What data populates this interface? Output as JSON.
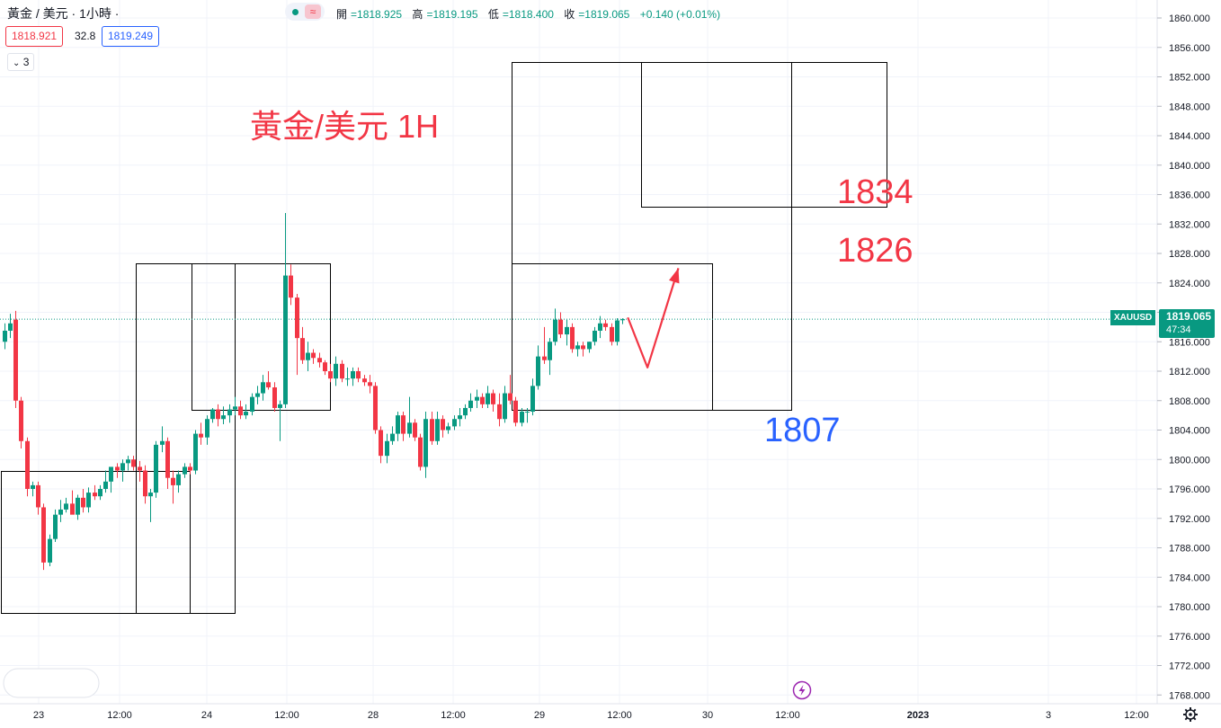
{
  "header": {
    "symbol_title": "黃金 / 美元 · 1小時 ·",
    "ohlc": [
      {
        "k": "開",
        "v": "=1818.925"
      },
      {
        "k": "高",
        "v": "=1819.195"
      },
      {
        "k": "低",
        "v": "=1818.400"
      },
      {
        "k": "收",
        "v": "=1819.065"
      },
      {
        "k": "",
        "v": "+0.140 (+0.01%)"
      }
    ],
    "sell_price": "1818.921",
    "spread": "32.8",
    "buy_price": "1819.249",
    "indicator_count": "3"
  },
  "price_tag": {
    "symbol": "XAUUSD",
    "price": "1819.065",
    "countdown": "47:34"
  },
  "chart_data": {
    "type": "candlestick",
    "title": "黃金/美元 1H",
    "ylim": [
      1766,
      1862
    ],
    "y_ticks": [
      "1860.000",
      "1856.000",
      "1852.000",
      "1848.000",
      "1844.000",
      "1840.000",
      "1836.000",
      "1832.000",
      "1828.000",
      "1824.000",
      "1820.000",
      "1816.000",
      "1812.000",
      "1808.000",
      "1804.000",
      "1800.000",
      "1796.000",
      "1792.000",
      "1788.000",
      "1784.000",
      "1780.000",
      "1776.000",
      "1772.000",
      "1768.000"
    ],
    "x_ticks": [
      "23",
      "12:00",
      "24",
      "12:00",
      "28",
      "12:00",
      "29",
      "12:00",
      "30",
      "12:00",
      "2023",
      "3",
      "12:00"
    ],
    "last_price": 1819.065,
    "annotations": [
      {
        "text": "1834",
        "color": "#f23645"
      },
      {
        "text": "1826",
        "color": "#f23645"
      },
      {
        "text": "1807",
        "color": "#2962ff"
      }
    ],
    "zones": [
      {
        "x0": 0,
        "x1": 33,
        "y0": 1779.2,
        "y1": 1798.5
      },
      {
        "x0": 24,
        "x1": 41,
        "y0": 1779.2,
        "y1": 1826.7
      },
      {
        "x0": 34,
        "x1": 58,
        "y0": 1806.8,
        "y1": 1826.7
      },
      {
        "x0": 91,
        "x1": 126,
        "y0": 1806.8,
        "y1": 1826.7
      },
      {
        "x0": 91,
        "x1": 140,
        "y0": 1806.8,
        "y1": 1854.0
      },
      {
        "x0": 114,
        "x1": 157,
        "y0": 1834.4,
        "y1": 1854.0
      }
    ],
    "arrow": [
      {
        "x": 111,
        "y": 1819.3
      },
      {
        "x": 114.5,
        "y": 1812.5
      },
      {
        "x": 120,
        "y": 1826.0
      }
    ],
    "candles": [
      {
        "o": 1816.0,
        "h": 1818.5,
        "l": 1815.0,
        "c": 1817.5
      },
      {
        "o": 1817.5,
        "h": 1819.8,
        "l": 1816.5,
        "c": 1818.5
      },
      {
        "o": 1819.0,
        "h": 1820.2,
        "l": 1807.0,
        "c": 1808.0
      },
      {
        "o": 1808.0,
        "h": 1808.5,
        "l": 1801.5,
        "c": 1802.5
      },
      {
        "o": 1802.5,
        "h": 1803.0,
        "l": 1795.0,
        "c": 1796.0
      },
      {
        "o": 1796.0,
        "h": 1797.0,
        "l": 1795.0,
        "c": 1796.5
      },
      {
        "o": 1796.5,
        "h": 1797.0,
        "l": 1792.5,
        "c": 1793.5
      },
      {
        "o": 1793.5,
        "h": 1794.0,
        "l": 1785.0,
        "c": 1786.0
      },
      {
        "o": 1786.0,
        "h": 1789.8,
        "l": 1785.5,
        "c": 1789.2
      },
      {
        "o": 1789.2,
        "h": 1793.2,
        "l": 1788.8,
        "c": 1792.5
      },
      {
        "o": 1792.5,
        "h": 1794.5,
        "l": 1791.5,
        "c": 1793.2
      },
      {
        "o": 1793.2,
        "h": 1794.8,
        "l": 1792.8,
        "c": 1794.0
      },
      {
        "o": 1794.0,
        "h": 1795.8,
        "l": 1793.2,
        "c": 1792.5
      },
      {
        "o": 1792.5,
        "h": 1795.2,
        "l": 1791.8,
        "c": 1794.8
      },
      {
        "o": 1794.8,
        "h": 1796.0,
        "l": 1792.8,
        "c": 1793.5
      },
      {
        "o": 1793.5,
        "h": 1796.2,
        "l": 1792.8,
        "c": 1795.5
      },
      {
        "o": 1795.5,
        "h": 1796.5,
        "l": 1794.5,
        "c": 1795.0
      },
      {
        "o": 1795.0,
        "h": 1796.5,
        "l": 1794.5,
        "c": 1796.0
      },
      {
        "o": 1796.0,
        "h": 1798.5,
        "l": 1795.5,
        "c": 1797.0
      },
      {
        "o": 1797.0,
        "h": 1799.0,
        "l": 1795.5,
        "c": 1799.0
      },
      {
        "o": 1799.0,
        "h": 1799.5,
        "l": 1797.5,
        "c": 1798.5
      },
      {
        "o": 1798.5,
        "h": 1800.0,
        "l": 1797.0,
        "c": 1799.5
      },
      {
        "o": 1799.5,
        "h": 1800.5,
        "l": 1798.5,
        "c": 1800.0
      },
      {
        "o": 1800.0,
        "h": 1800.5,
        "l": 1798.5,
        "c": 1799.0
      },
      {
        "o": 1799.0,
        "h": 1799.8,
        "l": 1797.0,
        "c": 1798.5
      },
      {
        "o": 1798.5,
        "h": 1799.2,
        "l": 1794.0,
        "c": 1795.0
      },
      {
        "o": 1795.0,
        "h": 1796.0,
        "l": 1791.5,
        "c": 1795.5
      },
      {
        "o": 1795.5,
        "h": 1802.5,
        "l": 1794.8,
        "c": 1802.0
      },
      {
        "o": 1802.0,
        "h": 1804.5,
        "l": 1801.0,
        "c": 1802.5
      },
      {
        "o": 1802.5,
        "h": 1803.0,
        "l": 1796.0,
        "c": 1797.5
      },
      {
        "o": 1797.5,
        "h": 1798.5,
        "l": 1794.0,
        "c": 1796.5
      },
      {
        "o": 1796.5,
        "h": 1798.5,
        "l": 1795.5,
        "c": 1798.0
      },
      {
        "o": 1798.0,
        "h": 1799.5,
        "l": 1797.5,
        "c": 1799.0
      },
      {
        "o": 1799.0,
        "h": 1799.5,
        "l": 1798.0,
        "c": 1798.5
      },
      {
        "o": 1798.5,
        "h": 1804.0,
        "l": 1798.0,
        "c": 1803.5
      },
      {
        "o": 1803.5,
        "h": 1805.0,
        "l": 1802.0,
        "c": 1803.0
      },
      {
        "o": 1803.0,
        "h": 1806.0,
        "l": 1802.0,
        "c": 1805.5
      },
      {
        "o": 1805.5,
        "h": 1807.0,
        "l": 1805.0,
        "c": 1806.8
      },
      {
        "o": 1806.8,
        "h": 1807.5,
        "l": 1804.5,
        "c": 1805.5
      },
      {
        "o": 1805.5,
        "h": 1807.2,
        "l": 1804.8,
        "c": 1806.0
      },
      {
        "o": 1806.0,
        "h": 1807.5,
        "l": 1805.0,
        "c": 1806.8
      },
      {
        "o": 1806.8,
        "h": 1808.5,
        "l": 1806.0,
        "c": 1807.2
      },
      {
        "o": 1807.2,
        "h": 1808.0,
        "l": 1805.5,
        "c": 1806.0
      },
      {
        "o": 1806.0,
        "h": 1807.5,
        "l": 1805.5,
        "c": 1806.5
      },
      {
        "o": 1806.5,
        "h": 1809.0,
        "l": 1806.0,
        "c": 1808.5
      },
      {
        "o": 1808.5,
        "h": 1810.0,
        "l": 1807.5,
        "c": 1809.0
      },
      {
        "o": 1809.0,
        "h": 1811.5,
        "l": 1808.0,
        "c": 1810.5
      },
      {
        "o": 1810.5,
        "h": 1812.0,
        "l": 1809.5,
        "c": 1809.8
      },
      {
        "o": 1809.8,
        "h": 1810.5,
        "l": 1806.5,
        "c": 1807.0
      },
      {
        "o": 1807.0,
        "h": 1808.0,
        "l": 1802.5,
        "c": 1807.5
      },
      {
        "o": 1807.5,
        "h": 1833.5,
        "l": 1807.0,
        "c": 1825.0
      },
      {
        "o": 1825.0,
        "h": 1826.5,
        "l": 1821.0,
        "c": 1822.0
      },
      {
        "o": 1822.0,
        "h": 1822.5,
        "l": 1811.5,
        "c": 1816.5
      },
      {
        "o": 1816.5,
        "h": 1818.0,
        "l": 1813.0,
        "c": 1813.5
      },
      {
        "o": 1813.5,
        "h": 1816.0,
        "l": 1812.0,
        "c": 1814.5
      },
      {
        "o": 1814.5,
        "h": 1815.0,
        "l": 1813.0,
        "c": 1813.8
      },
      {
        "o": 1813.8,
        "h": 1814.5,
        "l": 1812.5,
        "c": 1813.2
      },
      {
        "o": 1813.2,
        "h": 1813.5,
        "l": 1811.5,
        "c": 1812.0
      },
      {
        "o": 1812.0,
        "h": 1813.0,
        "l": 1810.5,
        "c": 1811.0
      },
      {
        "o": 1811.0,
        "h": 1814.0,
        "l": 1810.0,
        "c": 1813.0
      },
      {
        "o": 1813.0,
        "h": 1813.5,
        "l": 1810.5,
        "c": 1811.0
      },
      {
        "o": 1811.0,
        "h": 1812.5,
        "l": 1810.0,
        "c": 1811.0
      },
      {
        "o": 1811.0,
        "h": 1812.5,
        "l": 1810.0,
        "c": 1812.0
      },
      {
        "o": 1812.0,
        "h": 1812.5,
        "l": 1810.5,
        "c": 1811.0
      },
      {
        "o": 1811.0,
        "h": 1811.5,
        "l": 1810.0,
        "c": 1810.5
      },
      {
        "o": 1810.5,
        "h": 1811.5,
        "l": 1809.0,
        "c": 1810.0
      },
      {
        "o": 1810.0,
        "h": 1810.5,
        "l": 1803.5,
        "c": 1804.0
      },
      {
        "o": 1804.0,
        "h": 1804.5,
        "l": 1799.5,
        "c": 1800.5
      },
      {
        "o": 1800.5,
        "h": 1803.5,
        "l": 1799.5,
        "c": 1802.5
      },
      {
        "o": 1802.5,
        "h": 1804.5,
        "l": 1802.0,
        "c": 1803.5
      },
      {
        "o": 1803.5,
        "h": 1806.5,
        "l": 1802.5,
        "c": 1806.0
      },
      {
        "o": 1806.0,
        "h": 1806.5,
        "l": 1802.5,
        "c": 1803.5
      },
      {
        "o": 1803.5,
        "h": 1808.5,
        "l": 1803.0,
        "c": 1805.0
      },
      {
        "o": 1805.0,
        "h": 1805.5,
        "l": 1802.5,
        "c": 1803.0
      },
      {
        "o": 1803.0,
        "h": 1803.5,
        "l": 1798.5,
        "c": 1799.0
      },
      {
        "o": 1799.0,
        "h": 1806.5,
        "l": 1797.5,
        "c": 1805.5
      },
      {
        "o": 1805.5,
        "h": 1806.5,
        "l": 1802.0,
        "c": 1802.5
      },
      {
        "o": 1802.5,
        "h": 1806.5,
        "l": 1802.0,
        "c": 1805.5
      },
      {
        "o": 1805.5,
        "h": 1806.0,
        "l": 1803.0,
        "c": 1804.0
      },
      {
        "o": 1804.0,
        "h": 1805.0,
        "l": 1803.5,
        "c": 1804.5
      },
      {
        "o": 1804.5,
        "h": 1806.0,
        "l": 1804.0,
        "c": 1805.5
      },
      {
        "o": 1805.5,
        "h": 1807.0,
        "l": 1804.5,
        "c": 1806.0
      },
      {
        "o": 1806.0,
        "h": 1807.5,
        "l": 1805.5,
        "c": 1807.0
      },
      {
        "o": 1807.0,
        "h": 1809.0,
        "l": 1806.5,
        "c": 1808.0
      },
      {
        "o": 1808.0,
        "h": 1809.5,
        "l": 1807.0,
        "c": 1808.5
      },
      {
        "o": 1808.5,
        "h": 1809.0,
        "l": 1807.0,
        "c": 1807.5
      },
      {
        "o": 1807.5,
        "h": 1810.0,
        "l": 1807.0,
        "c": 1809.0
      },
      {
        "o": 1809.0,
        "h": 1809.5,
        "l": 1806.5,
        "c": 1807.5
      },
      {
        "o": 1807.5,
        "h": 1809.0,
        "l": 1804.5,
        "c": 1805.5
      },
      {
        "o": 1805.5,
        "h": 1810.0,
        "l": 1805.0,
        "c": 1809.0
      },
      {
        "o": 1809.0,
        "h": 1811.5,
        "l": 1807.5,
        "c": 1808.0
      },
      {
        "o": 1808.0,
        "h": 1808.5,
        "l": 1804.5,
        "c": 1805.0
      },
      {
        "o": 1805.0,
        "h": 1807.0,
        "l": 1804.5,
        "c": 1806.5
      },
      {
        "o": 1806.5,
        "h": 1807.0,
        "l": 1805.0,
        "c": 1806.5
      },
      {
        "o": 1806.5,
        "h": 1811.0,
        "l": 1806.0,
        "c": 1810.0
      },
      {
        "o": 1810.0,
        "h": 1815.5,
        "l": 1809.5,
        "c": 1814.0
      },
      {
        "o": 1814.0,
        "h": 1818.0,
        "l": 1813.0,
        "c": 1813.5
      },
      {
        "o": 1813.5,
        "h": 1816.5,
        "l": 1811.5,
        "c": 1816.0
      },
      {
        "o": 1816.0,
        "h": 1820.5,
        "l": 1815.5,
        "c": 1819.0
      },
      {
        "o": 1819.0,
        "h": 1820.0,
        "l": 1816.5,
        "c": 1817.0
      },
      {
        "o": 1817.0,
        "h": 1819.0,
        "l": 1815.5,
        "c": 1818.0
      },
      {
        "o": 1818.0,
        "h": 1818.5,
        "l": 1814.5,
        "c": 1815.0
      },
      {
        "o": 1815.0,
        "h": 1816.0,
        "l": 1814.0,
        "c": 1815.5
      },
      {
        "o": 1815.5,
        "h": 1816.0,
        "l": 1814.0,
        "c": 1815.0
      },
      {
        "o": 1815.0,
        "h": 1816.0,
        "l": 1814.5,
        "c": 1816.0
      },
      {
        "o": 1816.0,
        "h": 1818.0,
        "l": 1815.5,
        "c": 1817.5
      },
      {
        "o": 1817.5,
        "h": 1819.5,
        "l": 1816.5,
        "c": 1818.5
      },
      {
        "o": 1818.5,
        "h": 1819.0,
        "l": 1817.5,
        "c": 1818.0
      },
      {
        "o": 1818.0,
        "h": 1818.5,
        "l": 1815.5,
        "c": 1816.0
      },
      {
        "o": 1816.0,
        "h": 1819.2,
        "l": 1815.5,
        "c": 1818.9
      },
      {
        "o": 1818.925,
        "h": 1819.195,
        "l": 1818.4,
        "c": 1819.065
      }
    ]
  },
  "colors": {
    "up": "#089981",
    "down": "#f23645",
    "grid": "#f0f3fa",
    "box": "#000000",
    "blue": "#2962ff"
  },
  "icons": {
    "status_dot": "market-open-dot-icon",
    "status_wave": "approx-icon",
    "settings": "gear-icon",
    "bolt": "lightning-icon"
  }
}
